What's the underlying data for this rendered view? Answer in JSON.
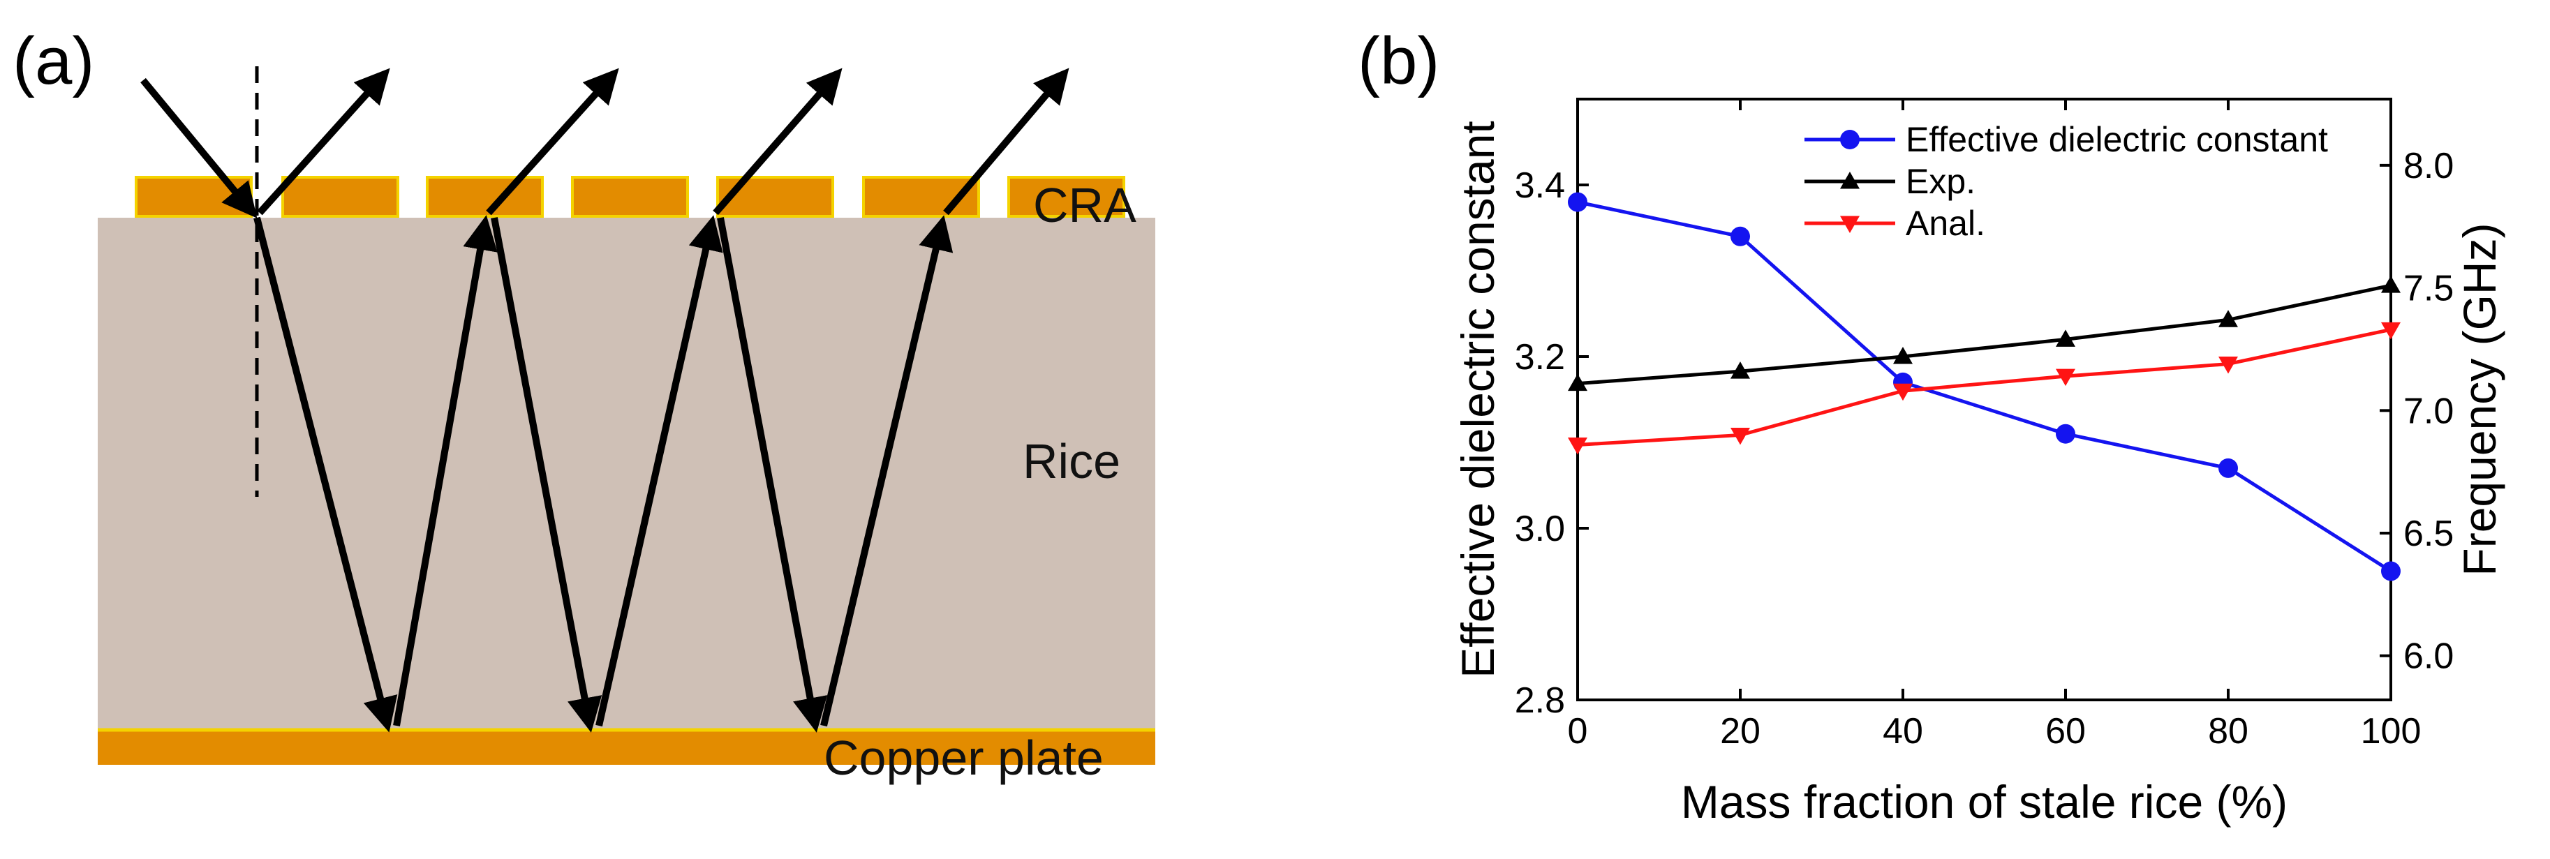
{
  "panel_a": {
    "label": "(a)",
    "cra_label": "CRA",
    "rice_label": "Rice",
    "copper_label": "Copper plate",
    "colors": {
      "rice": "#cfc0b6",
      "copper": "#e38c00",
      "copper_edge": "#f4d300",
      "ray": "#000000"
    }
  },
  "panel_b": {
    "label": "(b)"
  },
  "chart_data": {
    "type": "line",
    "title": "",
    "xlabel": "Mass fraction of stale rice (%)",
    "ylabel": "Effective dielectric constant",
    "y2label": "Frequency (GHz)",
    "xlim": [
      0,
      100
    ],
    "ylim": [
      2.8,
      3.5
    ],
    "y2lim": [
      5.82,
      8.27
    ],
    "x": [
      0,
      20,
      40,
      60,
      80,
      100
    ],
    "x_ticks": [
      "0",
      "20",
      "40",
      "60",
      "80",
      "100"
    ],
    "y_ticks": [
      "2.8",
      "3.0",
      "3.2",
      "3.4"
    ],
    "y2_ticks": [
      "6.0",
      "6.5",
      "7.0",
      "7.5",
      "8.0"
    ],
    "legend_position": "top-right",
    "series": [
      {
        "name": "Effective dielectric constant",
        "axis": "left",
        "color": "#1414f0",
        "marker": "circle",
        "values": [
          3.38,
          3.34,
          3.17,
          3.11,
          3.07,
          2.95
        ]
      },
      {
        "name": "Exp.",
        "axis": "right",
        "color": "#000000",
        "marker": "triangle-up",
        "values": [
          7.11,
          7.16,
          7.22,
          7.29,
          7.37,
          7.51
        ]
      },
      {
        "name": "Anal.",
        "axis": "right",
        "color": "#ff1414",
        "marker": "triangle-down",
        "values": [
          6.86,
          6.9,
          7.08,
          7.14,
          7.19,
          7.33
        ]
      }
    ]
  }
}
